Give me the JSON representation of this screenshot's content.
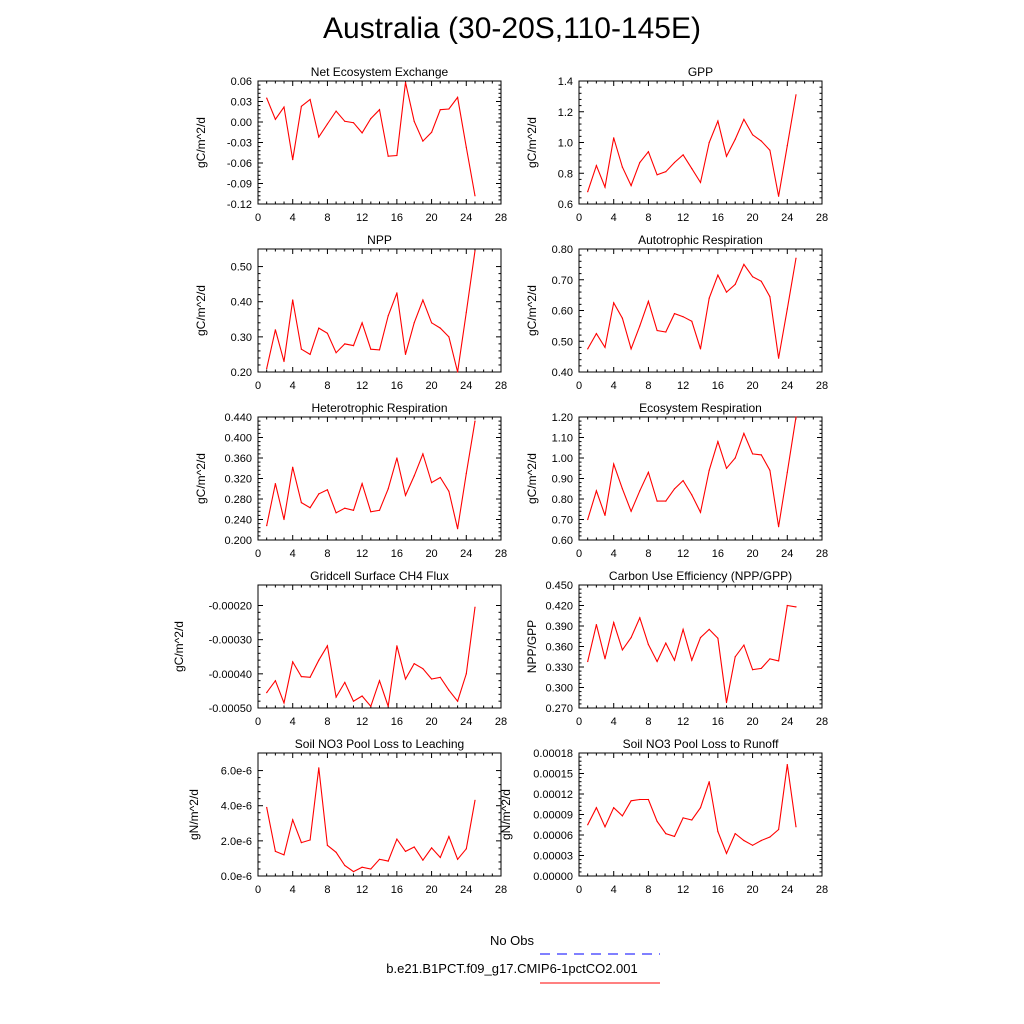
{
  "figure": {
    "title": "Australia (30-20S,110-145E)"
  },
  "legend": {
    "entries": [
      {
        "label": "No Obs",
        "color": "#0000ff",
        "dash": "dashed"
      },
      {
        "label": "b.e21.B1PCT.f09_g17.CMIP6-1pctCO2.001",
        "color": "#ff0000",
        "dash": "solid"
      }
    ]
  },
  "colors": {
    "series": "#ff0000",
    "obs": "#0000ff"
  },
  "chart_data": [
    {
      "type": "line",
      "title": "Net Ecosystem Exchange",
      "ylabel": "gC/m^2/d",
      "xlim": [
        0,
        28
      ],
      "ylim": [
        -0.12,
        0.06
      ],
      "xticks": [
        0,
        4,
        8,
        12,
        16,
        20,
        24,
        28
      ],
      "yticks": [
        -0.12,
        -0.09,
        -0.06,
        -0.03,
        0.0,
        0.03,
        0.06
      ],
      "ytick_labels": [
        "-0.12",
        "-0.09",
        "-0.06",
        "-0.03",
        "0.00",
        "0.03",
        "0.06"
      ],
      "x": [
        1,
        2,
        3,
        4,
        5,
        6,
        7,
        8,
        9,
        10,
        11,
        12,
        13,
        14,
        15,
        16,
        17,
        18,
        19,
        20,
        21,
        22,
        23,
        24,
        25
      ],
      "values": [
        0.035,
        0.004,
        0.022,
        -0.055,
        0.023,
        0.033,
        -0.022,
        -0.003,
        0.016,
        0.001,
        -0.001,
        -0.016,
        0.005,
        0.018,
        -0.05,
        -0.049,
        0.058,
        0.001,
        -0.028,
        -0.015,
        0.018,
        0.019,
        0.036,
        -0.037,
        -0.108
      ]
    },
    {
      "type": "line",
      "title": "GPP",
      "ylabel": "gC/m^2/d",
      "xlim": [
        0,
        28
      ],
      "ylim": [
        0.6,
        1.4
      ],
      "xticks": [
        0,
        4,
        8,
        12,
        16,
        20,
        24,
        28
      ],
      "yticks": [
        0.6,
        0.8,
        1.0,
        1.2,
        1.4
      ],
      "ytick_labels": [
        "0.6",
        "0.8",
        "1.0",
        "1.2",
        "1.4"
      ],
      "x": [
        1,
        2,
        3,
        4,
        5,
        6,
        7,
        8,
        9,
        10,
        11,
        12,
        13,
        14,
        15,
        16,
        17,
        18,
        19,
        20,
        21,
        22,
        23,
        24,
        25
      ],
      "values": [
        0.68,
        0.85,
        0.71,
        1.03,
        0.84,
        0.72,
        0.87,
        0.94,
        0.79,
        0.81,
        0.87,
        0.92,
        0.83,
        0.74,
        1.0,
        1.14,
        0.91,
        1.02,
        1.15,
        1.05,
        1.01,
        0.95,
        0.65,
        0.98,
        1.31
      ]
    },
    {
      "type": "line",
      "title": "NPP",
      "ylabel": "gC/m^2/d",
      "xlim": [
        0,
        28
      ],
      "ylim": [
        0.2,
        0.55
      ],
      "xticks": [
        0,
        4,
        8,
        12,
        16,
        20,
        24,
        28
      ],
      "yticks": [
        0.2,
        0.3,
        0.4,
        0.5
      ],
      "ytick_labels": [
        "0.20",
        "0.30",
        "0.40",
        "0.50"
      ],
      "x": [
        1,
        2,
        3,
        4,
        5,
        6,
        7,
        8,
        9,
        10,
        11,
        12,
        13,
        14,
        15,
        16,
        17,
        18,
        19,
        20,
        21,
        22,
        23,
        24,
        25
      ],
      "values": [
        0.21,
        0.32,
        0.23,
        0.405,
        0.265,
        0.25,
        0.325,
        0.31,
        0.255,
        0.28,
        0.275,
        0.34,
        0.265,
        0.263,
        0.36,
        0.425,
        0.25,
        0.34,
        0.405,
        0.34,
        0.325,
        0.3,
        0.2,
        0.37,
        0.545
      ]
    },
    {
      "type": "line",
      "title": "Autotrophic Respiration",
      "ylabel": "gC/m^2/d",
      "xlim": [
        0,
        28
      ],
      "ylim": [
        0.4,
        0.8
      ],
      "xticks": [
        0,
        4,
        8,
        12,
        16,
        20,
        24,
        28
      ],
      "yticks": [
        0.4,
        0.5,
        0.6,
        0.7,
        0.8
      ],
      "ytick_labels": [
        "0.40",
        "0.50",
        "0.60",
        "0.70",
        "0.80"
      ],
      "x": [
        1,
        2,
        3,
        4,
        5,
        6,
        7,
        8,
        9,
        10,
        11,
        12,
        13,
        14,
        15,
        16,
        17,
        18,
        19,
        20,
        21,
        22,
        23,
        24,
        25
      ],
      "values": [
        0.475,
        0.525,
        0.48,
        0.625,
        0.575,
        0.475,
        0.55,
        0.63,
        0.535,
        0.53,
        0.59,
        0.58,
        0.565,
        0.475,
        0.64,
        0.715,
        0.66,
        0.685,
        0.75,
        0.71,
        0.695,
        0.645,
        0.445,
        0.605,
        0.77
      ]
    },
    {
      "type": "line",
      "title": "Heterotrophic Respiration",
      "ylabel": "gC/m^2/d",
      "xlim": [
        0,
        28
      ],
      "ylim": [
        0.2,
        0.44
      ],
      "xticks": [
        0,
        4,
        8,
        12,
        16,
        20,
        24,
        28
      ],
      "yticks": [
        0.2,
        0.24,
        0.28,
        0.32,
        0.36,
        0.4,
        0.44
      ],
      "ytick_labels": [
        "0.200",
        "0.240",
        "0.280",
        "0.320",
        "0.360",
        "0.400",
        "0.440"
      ],
      "x": [
        1,
        2,
        3,
        4,
        5,
        6,
        7,
        8,
        9,
        10,
        11,
        12,
        13,
        14,
        15,
        16,
        17,
        18,
        19,
        20,
        21,
        22,
        23,
        24,
        25
      ],
      "values": [
        0.228,
        0.31,
        0.24,
        0.342,
        0.273,
        0.263,
        0.29,
        0.298,
        0.253,
        0.262,
        0.258,
        0.31,
        0.255,
        0.258,
        0.3,
        0.36,
        0.287,
        0.325,
        0.368,
        0.312,
        0.322,
        0.295,
        0.222,
        0.33,
        0.432
      ]
    },
    {
      "type": "line",
      "title": "Ecosystem Respiration",
      "ylabel": "gC/m^2/d",
      "xlim": [
        0,
        28
      ],
      "ylim": [
        0.6,
        1.2
      ],
      "xticks": [
        0,
        4,
        8,
        12,
        16,
        20,
        24,
        28
      ],
      "yticks": [
        0.6,
        0.7,
        0.8,
        0.9,
        1.0,
        1.1,
        1.2
      ],
      "ytick_labels": [
        "0.60",
        "0.70",
        "0.80",
        "0.90",
        "1.00",
        "1.10",
        "1.20"
      ],
      "x": [
        1,
        2,
        3,
        4,
        5,
        6,
        7,
        8,
        9,
        10,
        11,
        12,
        13,
        14,
        15,
        16,
        17,
        18,
        19,
        20,
        21,
        22,
        23,
        24,
        25
      ],
      "values": [
        0.7,
        0.84,
        0.72,
        0.97,
        0.85,
        0.74,
        0.84,
        0.93,
        0.79,
        0.79,
        0.85,
        0.89,
        0.82,
        0.735,
        0.94,
        1.08,
        0.95,
        1.0,
        1.12,
        1.02,
        1.015,
        0.94,
        0.665,
        0.93,
        1.2
      ]
    },
    {
      "type": "line",
      "title": "Gridcell Surface CH4 Flux",
      "ylabel": "gC/m^2/d",
      "xlim": [
        0,
        28
      ],
      "ylim": [
        -0.0005,
        -0.00014
      ],
      "xticks": [
        0,
        4,
        8,
        12,
        16,
        20,
        24,
        28
      ],
      "yticks": [
        -0.0005,
        -0.0004,
        -0.0003,
        -0.0002
      ],
      "ytick_labels": [
        "-0.00050",
        "-0.00040",
        "-0.00030",
        "-0.00020"
      ],
      "x": [
        1,
        2,
        3,
        4,
        5,
        6,
        7,
        8,
        9,
        10,
        11,
        12,
        13,
        14,
        15,
        16,
        17,
        18,
        19,
        20,
        21,
        22,
        23,
        24,
        25
      ],
      "values": [
        -0.000455,
        -0.00042,
        -0.000485,
        -0.000365,
        -0.000408,
        -0.00041,
        -0.00036,
        -0.000318,
        -0.000468,
        -0.000425,
        -0.00048,
        -0.000465,
        -0.000495,
        -0.00042,
        -0.000495,
        -0.000318,
        -0.000415,
        -0.00037,
        -0.000385,
        -0.000415,
        -0.00041,
        -0.000448,
        -0.00048,
        -0.0004,
        -0.000205
      ]
    },
    {
      "type": "line",
      "title": "Carbon Use Efficiency (NPP/GPP)",
      "ylabel": "NPP/GPP",
      "xlim": [
        0,
        28
      ],
      "ylim": [
        0.27,
        0.45
      ],
      "xticks": [
        0,
        4,
        8,
        12,
        16,
        20,
        24,
        28
      ],
      "yticks": [
        0.27,
        0.3,
        0.33,
        0.36,
        0.39,
        0.42,
        0.45
      ],
      "ytick_labels": [
        "0.270",
        "0.300",
        "0.330",
        "0.360",
        "0.390",
        "0.420",
        "0.450"
      ],
      "x": [
        1,
        2,
        3,
        4,
        5,
        6,
        7,
        8,
        9,
        10,
        11,
        12,
        13,
        14,
        15,
        16,
        17,
        18,
        19,
        20,
        21,
        22,
        23,
        24,
        25
      ],
      "values": [
        0.338,
        0.392,
        0.342,
        0.395,
        0.355,
        0.373,
        0.402,
        0.363,
        0.338,
        0.365,
        0.34,
        0.385,
        0.34,
        0.373,
        0.385,
        0.372,
        0.278,
        0.345,
        0.362,
        0.326,
        0.328,
        0.342,
        0.339,
        0.42,
        0.418
      ]
    },
    {
      "type": "line",
      "title": "Soil NO3 Pool Loss to Leaching",
      "ylabel": "gN/m^2/d",
      "xlim": [
        0,
        28
      ],
      "ylim": [
        0,
        7e-06
      ],
      "xticks": [
        0,
        4,
        8,
        12,
        16,
        20,
        24,
        28
      ],
      "yticks": [
        0,
        2e-06,
        4e-06,
        6e-06
      ],
      "ytick_labels": [
        "0.0e-6",
        "2.0e-6",
        "4.0e-6",
        "6.0e-6"
      ],
      "x": [
        1,
        2,
        3,
        4,
        5,
        6,
        7,
        8,
        9,
        10,
        11,
        12,
        13,
        14,
        15,
        16,
        17,
        18,
        19,
        20,
        21,
        22,
        23,
        24,
        25
      ],
      "values": [
        3.9e-06,
        1.4e-06,
        1.2e-06,
        3.2e-06,
        1.9e-06,
        2.05e-06,
        6.15e-06,
        1.75e-06,
        1.35e-06,
        6e-07,
        2.5e-07,
        5e-07,
        4e-07,
        9.5e-07,
        8.5e-07,
        2.1e-06,
        1.4e-06,
        1.65e-06,
        9e-07,
        1.6e-06,
        1.05e-06,
        2.25e-06,
        9.5e-07,
        1.55e-06,
        4.3e-06
      ]
    },
    {
      "type": "line",
      "title": "Soil NO3 Pool Loss to Runoff",
      "ylabel": "gN/m^2/d",
      "xlim": [
        0,
        28
      ],
      "ylim": [
        0,
        0.00018
      ],
      "xticks": [
        0,
        4,
        8,
        12,
        16,
        20,
        24,
        28
      ],
      "yticks": [
        0,
        3e-05,
        6e-05,
        9e-05,
        0.00012,
        0.00015,
        0.00018
      ],
      "ytick_labels": [
        "0.00000",
        "0.00003",
        "0.00006",
        "0.00009",
        "0.00012",
        "0.00015",
        "0.00018"
      ],
      "x": [
        1,
        2,
        3,
        4,
        5,
        6,
        7,
        8,
        9,
        10,
        11,
        12,
        13,
        14,
        15,
        16,
        17,
        18,
        19,
        20,
        21,
        22,
        23,
        24,
        25
      ],
      "values": [
        7.5e-05,
        0.0001,
        7.2e-05,
        0.0001,
        8.8e-05,
        0.00011,
        0.000112,
        0.000112,
        8e-05,
        6.2e-05,
        5.8e-05,
        8.5e-05,
        8.2e-05,
        0.0001,
        0.000138,
        6.5e-05,
        3.3e-05,
        6.2e-05,
        5.2e-05,
        4.5e-05,
        5.2e-05,
        5.7e-05,
        6.8e-05,
        0.000163,
        7.2e-05
      ]
    }
  ]
}
